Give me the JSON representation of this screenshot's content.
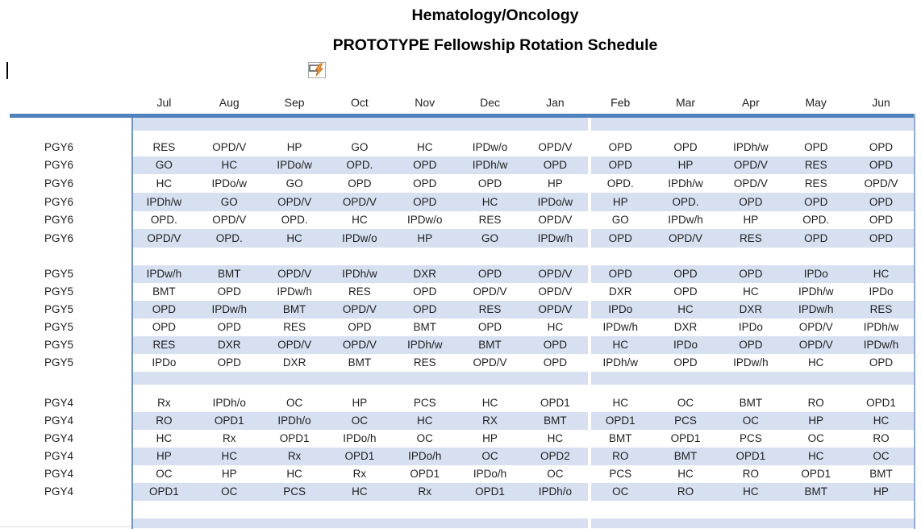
{
  "title": {
    "line1": "Hematology/Oncology",
    "line2": "PROTOTYPE Fellowship Rotation Schedule"
  },
  "icon": {
    "name": "flash-fill-options",
    "description": "lightning-bolt-button"
  },
  "months": [
    "Jul",
    "Aug",
    "Sep",
    "Oct",
    "Nov",
    "Dec",
    "Jan",
    "Feb",
    "Mar",
    "Apr",
    "May",
    "Jun"
  ],
  "sections": [
    {
      "label": "PGY6",
      "rows": [
        [
          "RES",
          "OPD/V",
          "HP",
          "GO",
          "HC",
          "IPDw/o",
          "OPD/V",
          "OPD",
          "OPD",
          "IPDh/w",
          "OPD",
          "OPD"
        ],
        [
          "GO",
          "HC",
          "IPDo/w",
          "OPD.",
          "OPD",
          "IPDh/w",
          "OPD",
          "OPD",
          "HP",
          "OPD/V",
          "RES",
          "OPD"
        ],
        [
          "HC",
          "IPDo/w",
          "GO",
          "OPD",
          "OPD",
          "OPD",
          "HP",
          "OPD.",
          "IPDh/w",
          "OPD/V",
          "RES",
          "OPD/V"
        ],
        [
          "IPDh/w",
          "GO",
          "OPD/V",
          "OPD/V",
          "OPD",
          "HC",
          "IPDo/w",
          "HP",
          "OPD.",
          "OPD",
          "OPD",
          "OPD"
        ],
        [
          "OPD.",
          "OPD/V",
          "OPD.",
          "HC",
          "IPDw/o",
          "RES",
          "OPD/V",
          "GO",
          "IPDw/h",
          "HP",
          "OPD.",
          "OPD"
        ],
        [
          "OPD/V",
          "OPD.",
          "HC",
          "IPDw/o",
          "HP",
          "GO",
          "IPDw/h",
          "OPD",
          "OPD/V",
          "RES",
          "OPD",
          "OPD"
        ]
      ]
    },
    {
      "label": "PGY5",
      "rows": [
        [
          "IPDw/h",
          "BMT",
          "OPD/V",
          "IPDh/w",
          "DXR",
          "OPD",
          "OPD/V",
          "OPD",
          "OPD",
          "OPD",
          "IPDo",
          "HC"
        ],
        [
          "BMT",
          "OPD",
          "IPDw/h",
          "RES",
          "OPD",
          "OPD/V",
          "OPD/V",
          "DXR",
          "OPD",
          "HC",
          "IPDh/w",
          "IPDo"
        ],
        [
          "OPD",
          "IPDw/h",
          "BMT",
          "OPD/V",
          "OPD",
          "RES",
          "OPD/V",
          "IPDo",
          "HC",
          "DXR",
          "IPDw/h",
          "RES"
        ],
        [
          "OPD",
          "OPD",
          "RES",
          "OPD",
          "BMT",
          "OPD",
          "HC",
          "IPDw/h",
          "DXR",
          "IPDo",
          "OPD/V",
          "IPDh/w"
        ],
        [
          "RES",
          "DXR",
          "OPD/V",
          "OPD/V",
          "IPDh/w",
          "BMT",
          "OPD",
          "HC",
          "IPDo",
          "OPD",
          "OPD/V",
          "IPDw/h"
        ],
        [
          "IPDo",
          "OPD",
          "DXR",
          "BMT",
          "RES",
          "OPD/V",
          "OPD",
          "IPDh/w",
          "OPD",
          "IPDw/h",
          "HC",
          "OPD"
        ]
      ]
    },
    {
      "label": "PGY4",
      "rows": [
        [
          "Rx",
          "IPDh/o",
          "OC",
          "HP",
          "PCS",
          "HC",
          "OPD1",
          "HC",
          "OC",
          "BMT",
          "RO",
          "OPD1"
        ],
        [
          "RO",
          "OPD1",
          "IPDh/o",
          "OC",
          "HC",
          "RX",
          "BMT",
          "OPD1",
          "PCS",
          "OC",
          "HP",
          "HC"
        ],
        [
          "HC",
          "Rx",
          "OPD1",
          "IPDo/h",
          "OC",
          "HP",
          "HC",
          "BMT",
          "OPD1",
          "PCS",
          "OC",
          "RO"
        ],
        [
          "HP",
          "HC",
          "Rx",
          "OPD1",
          "IPDo/h",
          "OC",
          "OPD2",
          "RO",
          "BMT",
          "OPD1",
          "HC",
          "OC"
        ],
        [
          "OC",
          "HP",
          "HC",
          "Rx",
          "OPD1",
          "IPDo/h",
          "OC",
          "PCS",
          "HC",
          "RO",
          "OPD1",
          "BMT"
        ],
        [
          "OPD1",
          "OC",
          "PCS",
          "HC",
          "Rx",
          "OPD1",
          "IPDh/o",
          "OC",
          "RO",
          "HC",
          "BMT",
          "HP"
        ]
      ]
    }
  ],
  "colors": {
    "rule_blue": "#4F81BD",
    "band_blue": "#D6E0F1",
    "bolt_orange": "#F0A13C",
    "bolt_outline": "#D26911"
  }
}
